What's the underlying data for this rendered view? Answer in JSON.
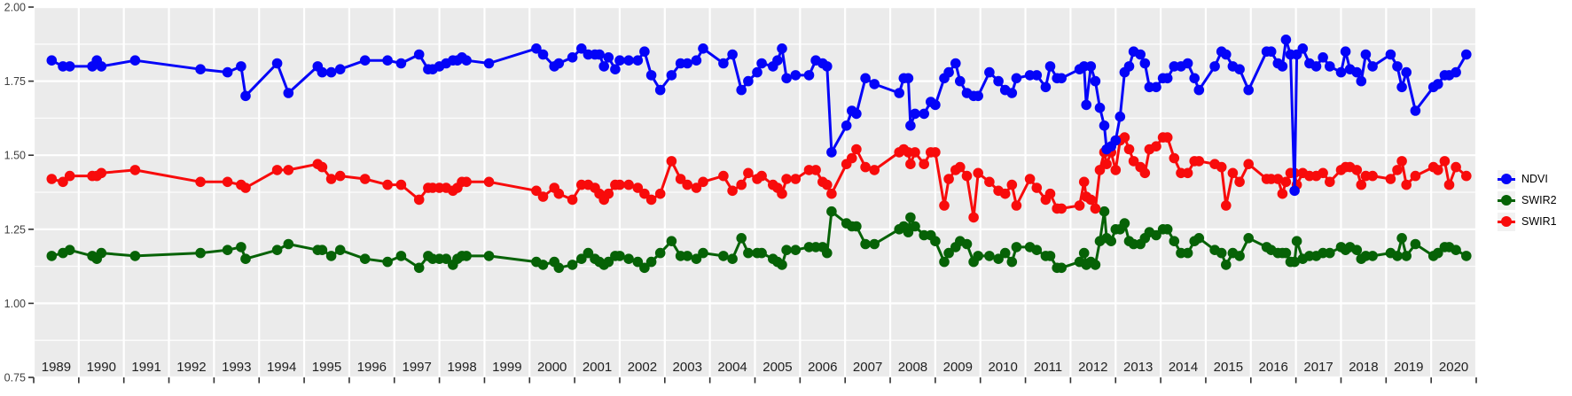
{
  "chart_data": {
    "type": "line",
    "title": "",
    "xlabel": "",
    "ylabel": "",
    "x_range": [
      1989,
      2021
    ],
    "ylim": [
      0.75,
      2.0
    ],
    "grid": true,
    "legend_position": "right",
    "x_tick_labels": [
      "1989",
      "1990",
      "1991",
      "1992",
      "1993",
      "1994",
      "1995",
      "1996",
      "1997",
      "1998",
      "1999",
      "2000",
      "2001",
      "2002",
      "2003",
      "2004",
      "2005",
      "2006",
      "2007",
      "2008",
      "2009",
      "2010",
      "2011",
      "2012",
      "2013",
      "2014",
      "2015",
      "2016",
      "2017",
      "2018",
      "2019",
      "2020"
    ],
    "y_tick_labels": [
      "2.00",
      "1.75",
      "1.50",
      "1.25",
      "1.00",
      "0.75"
    ],
    "y_tick_values": [
      2.0,
      1.75,
      1.5,
      1.25,
      1.0,
      0.75
    ],
    "y_minor_values": [
      1.875,
      1.625,
      1.375,
      1.125,
      0.875
    ],
    "x": [
      1989.4,
      1989.65,
      1989.8,
      1990.3,
      1990.4,
      1990.5,
      1991.25,
      1992.7,
      1993.3,
      1993.6,
      1993.7,
      1994.4,
      1994.65,
      1995.3,
      1995.4,
      1995.6,
      1995.8,
      1996.35,
      1996.85,
      1997.15,
      1997.55,
      1997.75,
      1997.85,
      1998.0,
      1998.15,
      1998.3,
      1998.4,
      1998.5,
      1998.6,
      1999.1,
      2000.15,
      2000.3,
      2000.55,
      2000.65,
      2000.95,
      2001.15,
      2001.3,
      2001.45,
      2001.55,
      2001.65,
      2001.75,
      2001.9,
      2002.0,
      2002.2,
      2002.4,
      2002.55,
      2002.7,
      2002.9,
      2003.15,
      2003.35,
      2003.5,
      2003.7,
      2003.85,
      2004.3,
      2004.5,
      2004.7,
      2004.85,
      2005.05,
      2005.15,
      2005.4,
      2005.5,
      2005.6,
      2005.7,
      2005.9,
      2006.2,
      2006.35,
      2006.5,
      2006.6,
      2006.7,
      2007.03,
      2007.15,
      2007.25,
      2007.45,
      2007.65,
      2008.2,
      2008.3,
      2008.4,
      2008.45,
      2008.55,
      2008.75,
      2008.9,
      2009.0,
      2009.2,
      2009.3,
      2009.45,
      2009.55,
      2009.7,
      2009.85,
      2009.95,
      2010.2,
      2010.4,
      2010.55,
      2010.7,
      2010.8,
      2011.1,
      2011.25,
      2011.45,
      2011.55,
      2011.7,
      2011.8,
      2012.2,
      2012.3,
      2012.35,
      2012.45,
      2012.55,
      2012.65,
      2012.75,
      2012.8,
      2012.9,
      2013.0,
      2013.1,
      2013.2,
      2013.3,
      2013.4,
      2013.55,
      2013.65,
      2013.75,
      2013.9,
      2014.05,
      2014.15,
      2014.3,
      2014.45,
      2014.6,
      2014.75,
      2014.85,
      2015.2,
      2015.35,
      2015.45,
      2015.6,
      2015.75,
      2015.95,
      2016.35,
      2016.45,
      2016.6,
      2016.7,
      2016.78,
      2016.88,
      2016.97,
      2017.02,
      2017.15,
      2017.3,
      2017.45,
      2017.6,
      2017.75,
      2018.0,
      2018.1,
      2018.2,
      2018.35,
      2018.45,
      2018.55,
      2018.7,
      2019.1,
      2019.25,
      2019.35,
      2019.45,
      2019.65,
      2020.05,
      2020.15,
      2020.3,
      2020.4,
      2020.55,
      2020.78
    ],
    "series": [
      {
        "name": "NDVI",
        "color": "#0404f8",
        "values": [
          1.82,
          1.8,
          1.8,
          1.8,
          1.82,
          1.8,
          1.82,
          1.79,
          1.78,
          1.8,
          1.7,
          1.81,
          1.71,
          1.8,
          1.78,
          1.78,
          1.79,
          1.82,
          1.82,
          1.81,
          1.84,
          1.79,
          1.79,
          1.8,
          1.81,
          1.82,
          1.82,
          1.83,
          1.82,
          1.81,
          1.86,
          1.84,
          1.8,
          1.81,
          1.83,
          1.86,
          1.84,
          1.84,
          1.84,
          1.8,
          1.83,
          1.79,
          1.82,
          1.82,
          1.82,
          1.85,
          1.77,
          1.72,
          1.77,
          1.81,
          1.81,
          1.82,
          1.86,
          1.81,
          1.84,
          1.72,
          1.75,
          1.78,
          1.81,
          1.8,
          1.82,
          1.86,
          1.76,
          1.77,
          1.77,
          1.82,
          1.81,
          1.8,
          1.51,
          1.6,
          1.65,
          1.64,
          1.76,
          1.74,
          1.71,
          1.76,
          1.76,
          1.6,
          1.64,
          1.64,
          1.68,
          1.67,
          1.76,
          1.78,
          1.81,
          1.75,
          1.71,
          1.7,
          1.7,
          1.78,
          1.75,
          1.72,
          1.71,
          1.76,
          1.77,
          1.77,
          1.73,
          1.8,
          1.76,
          1.76,
          1.79,
          1.8,
          1.67,
          1.8,
          1.75,
          1.66,
          1.6,
          1.52,
          1.53,
          1.55,
          1.63,
          1.78,
          1.8,
          1.85,
          1.84,
          1.81,
          1.73,
          1.73,
          1.76,
          1.76,
          1.8,
          1.8,
          1.81,
          1.76,
          1.72,
          1.8,
          1.85,
          1.84,
          1.8,
          1.79,
          1.72,
          1.85,
          1.85,
          1.81,
          1.8,
          1.89,
          1.84,
          1.38,
          1.84,
          1.86,
          1.81,
          1.8,
          1.83,
          1.8,
          1.78,
          1.85,
          1.79,
          1.78,
          1.75,
          1.84,
          1.8,
          1.84,
          1.8,
          1.73,
          1.78,
          1.65,
          1.73,
          1.74,
          1.77,
          1.77,
          1.78,
          1.84
        ]
      },
      {
        "name": "SWIR2",
        "color": "#066206",
        "values": [
          1.16,
          1.17,
          1.18,
          1.16,
          1.15,
          1.17,
          1.16,
          1.17,
          1.18,
          1.19,
          1.15,
          1.18,
          1.2,
          1.18,
          1.18,
          1.16,
          1.18,
          1.15,
          1.14,
          1.16,
          1.12,
          1.16,
          1.15,
          1.15,
          1.15,
          1.13,
          1.15,
          1.16,
          1.16,
          1.16,
          1.14,
          1.13,
          1.14,
          1.12,
          1.13,
          1.15,
          1.17,
          1.15,
          1.14,
          1.13,
          1.14,
          1.16,
          1.16,
          1.15,
          1.14,
          1.12,
          1.14,
          1.17,
          1.21,
          1.16,
          1.16,
          1.15,
          1.17,
          1.16,
          1.15,
          1.22,
          1.17,
          1.17,
          1.17,
          1.15,
          1.14,
          1.13,
          1.18,
          1.18,
          1.19,
          1.19,
          1.19,
          1.17,
          1.31,
          1.27,
          1.26,
          1.26,
          1.2,
          1.2,
          1.25,
          1.26,
          1.24,
          1.29,
          1.26,
          1.23,
          1.23,
          1.21,
          1.14,
          1.17,
          1.19,
          1.21,
          1.2,
          1.14,
          1.16,
          1.16,
          1.15,
          1.17,
          1.14,
          1.19,
          1.19,
          1.18,
          1.16,
          1.16,
          1.12,
          1.12,
          1.14,
          1.17,
          1.13,
          1.14,
          1.13,
          1.21,
          1.31,
          1.22,
          1.21,
          1.25,
          1.25,
          1.27,
          1.21,
          1.2,
          1.2,
          1.22,
          1.24,
          1.23,
          1.25,
          1.25,
          1.21,
          1.17,
          1.17,
          1.21,
          1.22,
          1.18,
          1.17,
          1.13,
          1.17,
          1.16,
          1.22,
          1.19,
          1.18,
          1.17,
          1.17,
          1.17,
          1.14,
          1.14,
          1.21,
          1.15,
          1.16,
          1.16,
          1.17,
          1.17,
          1.19,
          1.18,
          1.19,
          1.18,
          1.15,
          1.16,
          1.16,
          1.17,
          1.16,
          1.22,
          1.16,
          1.2,
          1.16,
          1.17,
          1.19,
          1.19,
          1.18,
          1.16
        ]
      },
      {
        "name": "SWIR1",
        "color": "#f80b0b",
        "values": [
          1.42,
          1.41,
          1.43,
          1.43,
          1.43,
          1.44,
          1.45,
          1.41,
          1.41,
          1.4,
          1.39,
          1.45,
          1.45,
          1.47,
          1.46,
          1.42,
          1.43,
          1.42,
          1.4,
          1.4,
          1.35,
          1.39,
          1.39,
          1.39,
          1.39,
          1.38,
          1.39,
          1.41,
          1.41,
          1.41,
          1.38,
          1.36,
          1.39,
          1.37,
          1.35,
          1.4,
          1.4,
          1.39,
          1.37,
          1.35,
          1.37,
          1.4,
          1.4,
          1.4,
          1.39,
          1.37,
          1.35,
          1.37,
          1.48,
          1.42,
          1.4,
          1.39,
          1.41,
          1.43,
          1.38,
          1.4,
          1.44,
          1.42,
          1.43,
          1.4,
          1.39,
          1.37,
          1.42,
          1.42,
          1.45,
          1.45,
          1.41,
          1.4,
          1.37,
          1.47,
          1.49,
          1.52,
          1.46,
          1.45,
          1.51,
          1.52,
          1.51,
          1.47,
          1.51,
          1.47,
          1.51,
          1.51,
          1.33,
          1.42,
          1.45,
          1.46,
          1.43,
          1.29,
          1.44,
          1.41,
          1.38,
          1.37,
          1.4,
          1.33,
          1.42,
          1.39,
          1.35,
          1.37,
          1.32,
          1.32,
          1.33,
          1.41,
          1.36,
          1.35,
          1.32,
          1.45,
          1.51,
          1.47,
          1.51,
          1.45,
          1.55,
          1.56,
          1.52,
          1.48,
          1.46,
          1.44,
          1.52,
          1.53,
          1.56,
          1.56,
          1.49,
          1.44,
          1.44,
          1.48,
          1.48,
          1.47,
          1.46,
          1.33,
          1.44,
          1.41,
          1.47,
          1.42,
          1.42,
          1.42,
          1.37,
          1.41,
          1.44,
          1.44,
          1.4,
          1.44,
          1.43,
          1.43,
          1.44,
          1.41,
          1.45,
          1.46,
          1.46,
          1.45,
          1.4,
          1.43,
          1.43,
          1.42,
          1.45,
          1.48,
          1.4,
          1.43,
          1.46,
          1.45,
          1.48,
          1.4,
          1.46,
          1.43
        ]
      }
    ]
  },
  "style": {
    "page_bg": "#ffffff",
    "panel_bg": "#ebebeb",
    "grid_color": "#ffffff",
    "tick_color": "#333333",
    "x_label_color": "#1f1f1f",
    "y_label_color": "#404040",
    "legend_key_bg": "#f2f2f2"
  },
  "legend": {
    "items": [
      {
        "label": "NDVI",
        "color": "#0404f8"
      },
      {
        "label": "SWIR2",
        "color": "#066206"
      },
      {
        "label": "SWIR1",
        "color": "#f80b0b"
      }
    ]
  }
}
